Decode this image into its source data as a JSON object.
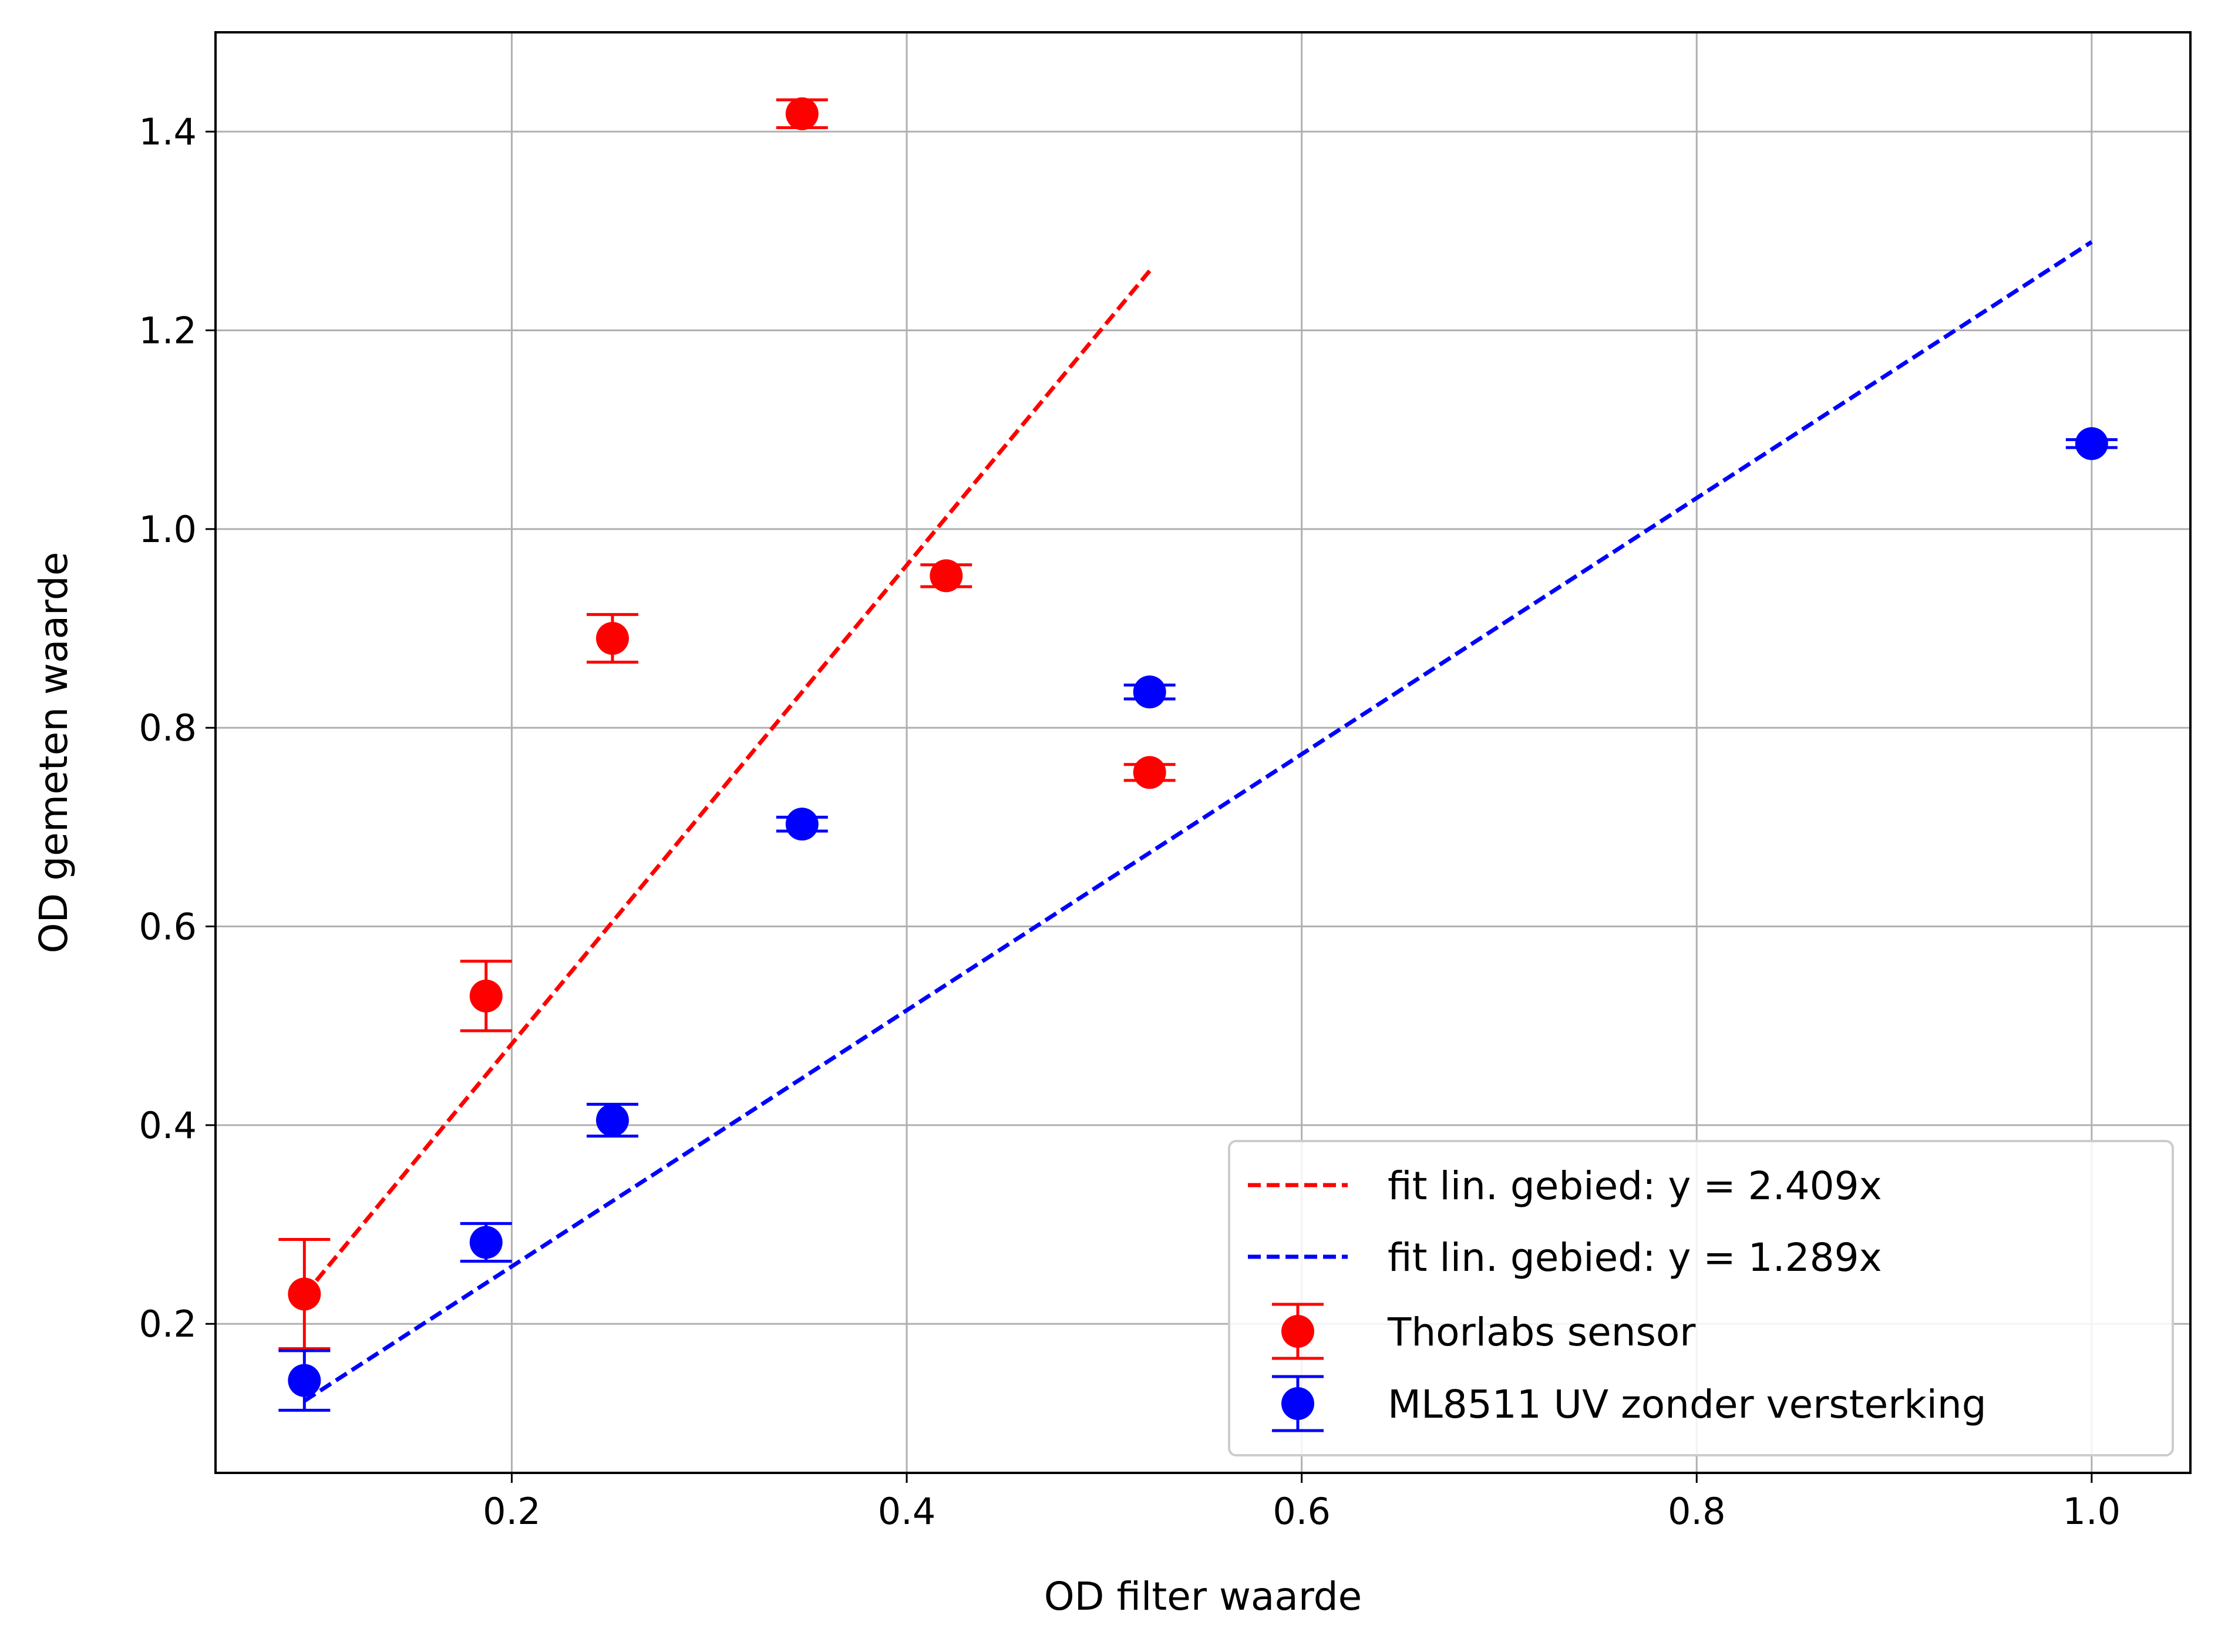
{
  "chart_data": {
    "type": "scatter",
    "title": "",
    "xlabel": "OD filter waarde",
    "ylabel": "OD gemeten waarde",
    "xlim": [
      0.05,
      1.05
    ],
    "ylim": [
      0.05,
      1.5
    ],
    "xticks": [
      0.2,
      0.4,
      0.6,
      0.8,
      1.0
    ],
    "xtick_labels": [
      "0.2",
      "0.4",
      "0.6",
      "0.8",
      "1.0"
    ],
    "yticks": [
      0.2,
      0.4,
      0.6,
      0.8,
      1.0,
      1.2,
      1.4
    ],
    "ytick_labels": [
      "0.2",
      "0.4",
      "0.6",
      "0.8",
      "1.0",
      "1.2",
      "1.4"
    ],
    "grid": true,
    "legend_position": "lower-right",
    "fits": [
      {
        "name": "fit lin. gebied: y = 2.409x",
        "slope": 2.409,
        "x_range": [
          0.095,
          0.523
        ],
        "color": "#ff0000",
        "style": "dashed"
      },
      {
        "name": "fit lin. gebied: y = 1.289x",
        "slope": 1.289,
        "x_range": [
          0.095,
          1.0
        ],
        "color": "#0000ff",
        "style": "dashed"
      }
    ],
    "series": [
      {
        "name": "Thorlabs sensor",
        "color": "#ff0000",
        "points": [
          {
            "x": 0.095,
            "y": 0.23,
            "err": 0.055
          },
          {
            "x": 0.187,
            "y": 0.53,
            "err": 0.035
          },
          {
            "x": 0.251,
            "y": 0.89,
            "err": 0.024
          },
          {
            "x": 0.347,
            "y": 1.418,
            "err": 0.014
          },
          {
            "x": 0.42,
            "y": 0.953,
            "err": 0.011
          },
          {
            "x": 0.523,
            "y": 0.755,
            "err": 0.008
          }
        ]
      },
      {
        "name": "ML8511 UV zonder versterking",
        "color": "#0000ff",
        "points": [
          {
            "x": 0.095,
            "y": 0.143,
            "err": 0.03
          },
          {
            "x": 0.187,
            "y": 0.282,
            "err": 0.019
          },
          {
            "x": 0.251,
            "y": 0.405,
            "err": 0.016
          },
          {
            "x": 0.347,
            "y": 0.703,
            "err": 0.007
          },
          {
            "x": 0.523,
            "y": 0.836,
            "err": 0.007
          },
          {
            "x": 1.0,
            "y": 1.086,
            "err": 0.004
          }
        ]
      }
    ]
  }
}
